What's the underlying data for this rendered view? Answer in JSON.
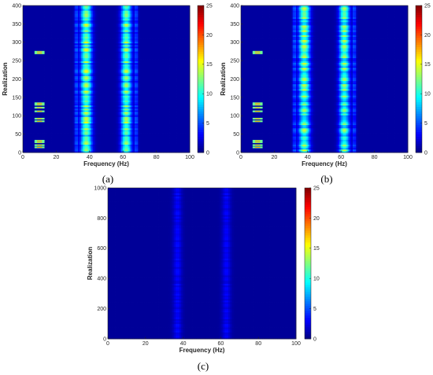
{
  "chart_data": [
    {
      "type": "heatmap",
      "panel_label": "(a)",
      "xlabel": "Frequency (Hz)",
      "ylabel": "Realization",
      "xlim": [
        0,
        100
      ],
      "ylim": [
        0,
        400
      ],
      "xticks": [
        0,
        20,
        40,
        60,
        80,
        100
      ],
      "yticks": [
        0,
        50,
        100,
        150,
        200,
        250,
        300,
        350,
        400
      ],
      "colorbar": {
        "range": [
          0,
          25
        ],
        "ticks": [
          0,
          5,
          10,
          15,
          20,
          25
        ],
        "colormap": "jet"
      },
      "bands": [
        {
          "center_hz": 38,
          "half_width_hz": 3.2,
          "level": 11
        },
        {
          "center_hz": 62,
          "half_width_hz": 3.0,
          "level": 10.5
        },
        {
          "center_hz": 32,
          "half_width_hz": 1.0,
          "level": 4
        },
        {
          "center_hz": 68,
          "half_width_hz": 1.0,
          "level": 4
        }
      ],
      "band_variation": 0.35,
      "fault_lines": {
        "hz_range": [
          7,
          13
        ],
        "realizations": [
          14,
          20,
          28,
          32,
          85,
          92,
          112,
          122,
          130,
          134,
          270,
          274
        ],
        "level": 12
      },
      "background_level": 0.8
    },
    {
      "type": "heatmap",
      "panel_label": "(b)",
      "xlabel": "Frequency (Hz)",
      "ylabel": "Realization",
      "xlim": [
        0,
        100
      ],
      "ylim": [
        0,
        400
      ],
      "xticks": [
        0,
        20,
        40,
        60,
        80,
        100
      ],
      "yticks": [
        0,
        50,
        100,
        150,
        200,
        250,
        300,
        350,
        400
      ],
      "colorbar": {
        "range": [
          0,
          25
        ],
        "ticks": [
          0,
          5,
          10,
          15,
          20,
          25
        ],
        "colormap": "jet"
      },
      "bands": [
        {
          "center_hz": 38,
          "half_width_hz": 3.2,
          "level": 11
        },
        {
          "center_hz": 62,
          "half_width_hz": 3.0,
          "level": 10.5
        },
        {
          "center_hz": 32,
          "half_width_hz": 1.0,
          "level": 4
        },
        {
          "center_hz": 68,
          "half_width_hz": 1.0,
          "level": 4
        }
      ],
      "band_variation": 0.35,
      "fault_lines": {
        "hz_range": [
          7,
          13
        ],
        "realizations": [
          14,
          20,
          28,
          32,
          85,
          92,
          112,
          122,
          130,
          134,
          270,
          274
        ],
        "level": 12
      },
      "background_level": 0.8
    },
    {
      "type": "heatmap",
      "panel_label": "(c)",
      "xlabel": "Frequency (Hz)",
      "ylabel": "Realization",
      "xlim": [
        0,
        100
      ],
      "ylim": [
        0,
        1000
      ],
      "xticks": [
        0,
        20,
        40,
        60,
        80,
        100
      ],
      "yticks": [
        0,
        200,
        400,
        600,
        800,
        1000
      ],
      "colorbar": {
        "range": [
          0,
          25
        ],
        "ticks": [
          0,
          5,
          10,
          15,
          20,
          25
        ],
        "colormap": "jet"
      },
      "bands": [
        {
          "center_hz": 37,
          "half_width_hz": 2.2,
          "level": 2.4
        },
        {
          "center_hz": 63,
          "half_width_hz": 2.2,
          "level": 2.3
        }
      ],
      "band_variation": 0.25,
      "fault_lines": null,
      "background_level": 0.6
    }
  ]
}
